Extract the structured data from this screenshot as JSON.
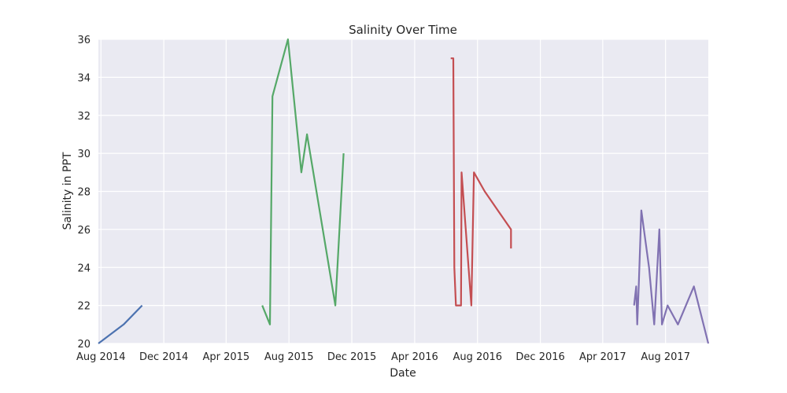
{
  "chart_data": {
    "type": "line",
    "title": "Salinity Over Time",
    "xlabel": "Date",
    "ylabel": "Salinity in PPT",
    "xlim": [
      "2014-07-27",
      "2017-10-23"
    ],
    "ylim": [
      20,
      36
    ],
    "grid": true,
    "background": "#eaeaf2",
    "x_ticks": [
      {
        "date": "2014-08-01",
        "label": "Aug 2014"
      },
      {
        "date": "2014-12-01",
        "label": "Dec 2014"
      },
      {
        "date": "2015-04-01",
        "label": "Apr 2015"
      },
      {
        "date": "2015-08-01",
        "label": "Aug 2015"
      },
      {
        "date": "2015-12-01",
        "label": "Dec 2015"
      },
      {
        "date": "2016-04-01",
        "label": "Apr 2016"
      },
      {
        "date": "2016-08-01",
        "label": "Aug 2016"
      },
      {
        "date": "2016-12-01",
        "label": "Dec 2016"
      },
      {
        "date": "2017-04-01",
        "label": "Apr 2017"
      },
      {
        "date": "2017-08-01",
        "label": "Aug 2017"
      }
    ],
    "y_ticks": [
      20,
      22,
      24,
      26,
      28,
      30,
      32,
      34,
      36
    ],
    "series": [
      {
        "color": "#4c72b0",
        "points": [
          {
            "x": "2014-07-27",
            "y": 20
          },
          {
            "x": "2014-09-14",
            "y": 21
          },
          {
            "x": "2014-10-20",
            "y": 22
          }
        ]
      },
      {
        "color": "#55a868",
        "points": [
          {
            "x": "2015-06-10",
            "y": 22
          },
          {
            "x": "2015-06-25",
            "y": 21
          },
          {
            "x": "2015-06-30",
            "y": 33
          },
          {
            "x": "2015-07-30",
            "y": 36
          },
          {
            "x": "2015-08-25",
            "y": 29
          },
          {
            "x": "2015-09-05",
            "y": 31
          },
          {
            "x": "2015-10-30",
            "y": 22
          },
          {
            "x": "2015-11-15",
            "y": 30
          }
        ]
      },
      {
        "color": "#c44e52",
        "points": [
          {
            "x": "2016-06-10",
            "y": 35
          },
          {
            "x": "2016-06-15",
            "y": 35
          },
          {
            "x": "2016-06-17",
            "y": 24
          },
          {
            "x": "2016-06-20",
            "y": 22
          },
          {
            "x": "2016-06-30",
            "y": 22
          },
          {
            "x": "2016-07-01",
            "y": 29
          },
          {
            "x": "2016-07-20",
            "y": 22
          },
          {
            "x": "2016-07-25",
            "y": 29
          },
          {
            "x": "2016-08-15",
            "y": 28
          },
          {
            "x": "2016-10-05",
            "y": 26
          },
          {
            "x": "2016-10-05",
            "y": 25
          }
        ]
      },
      {
        "color": "#8172b2",
        "points": [
          {
            "x": "2017-06-01",
            "y": 22
          },
          {
            "x": "2017-06-05",
            "y": 23
          },
          {
            "x": "2017-06-07",
            "y": 21
          },
          {
            "x": "2017-06-10",
            "y": 23
          },
          {
            "x": "2017-06-15",
            "y": 27
          },
          {
            "x": "2017-06-30",
            "y": 24
          },
          {
            "x": "2017-07-10",
            "y": 21
          },
          {
            "x": "2017-07-20",
            "y": 26
          },
          {
            "x": "2017-07-25",
            "y": 21
          },
          {
            "x": "2017-08-05",
            "y": 22
          },
          {
            "x": "2017-08-25",
            "y": 21
          },
          {
            "x": "2017-09-25",
            "y": 23
          },
          {
            "x": "2017-10-23",
            "y": 20
          }
        ]
      }
    ]
  }
}
